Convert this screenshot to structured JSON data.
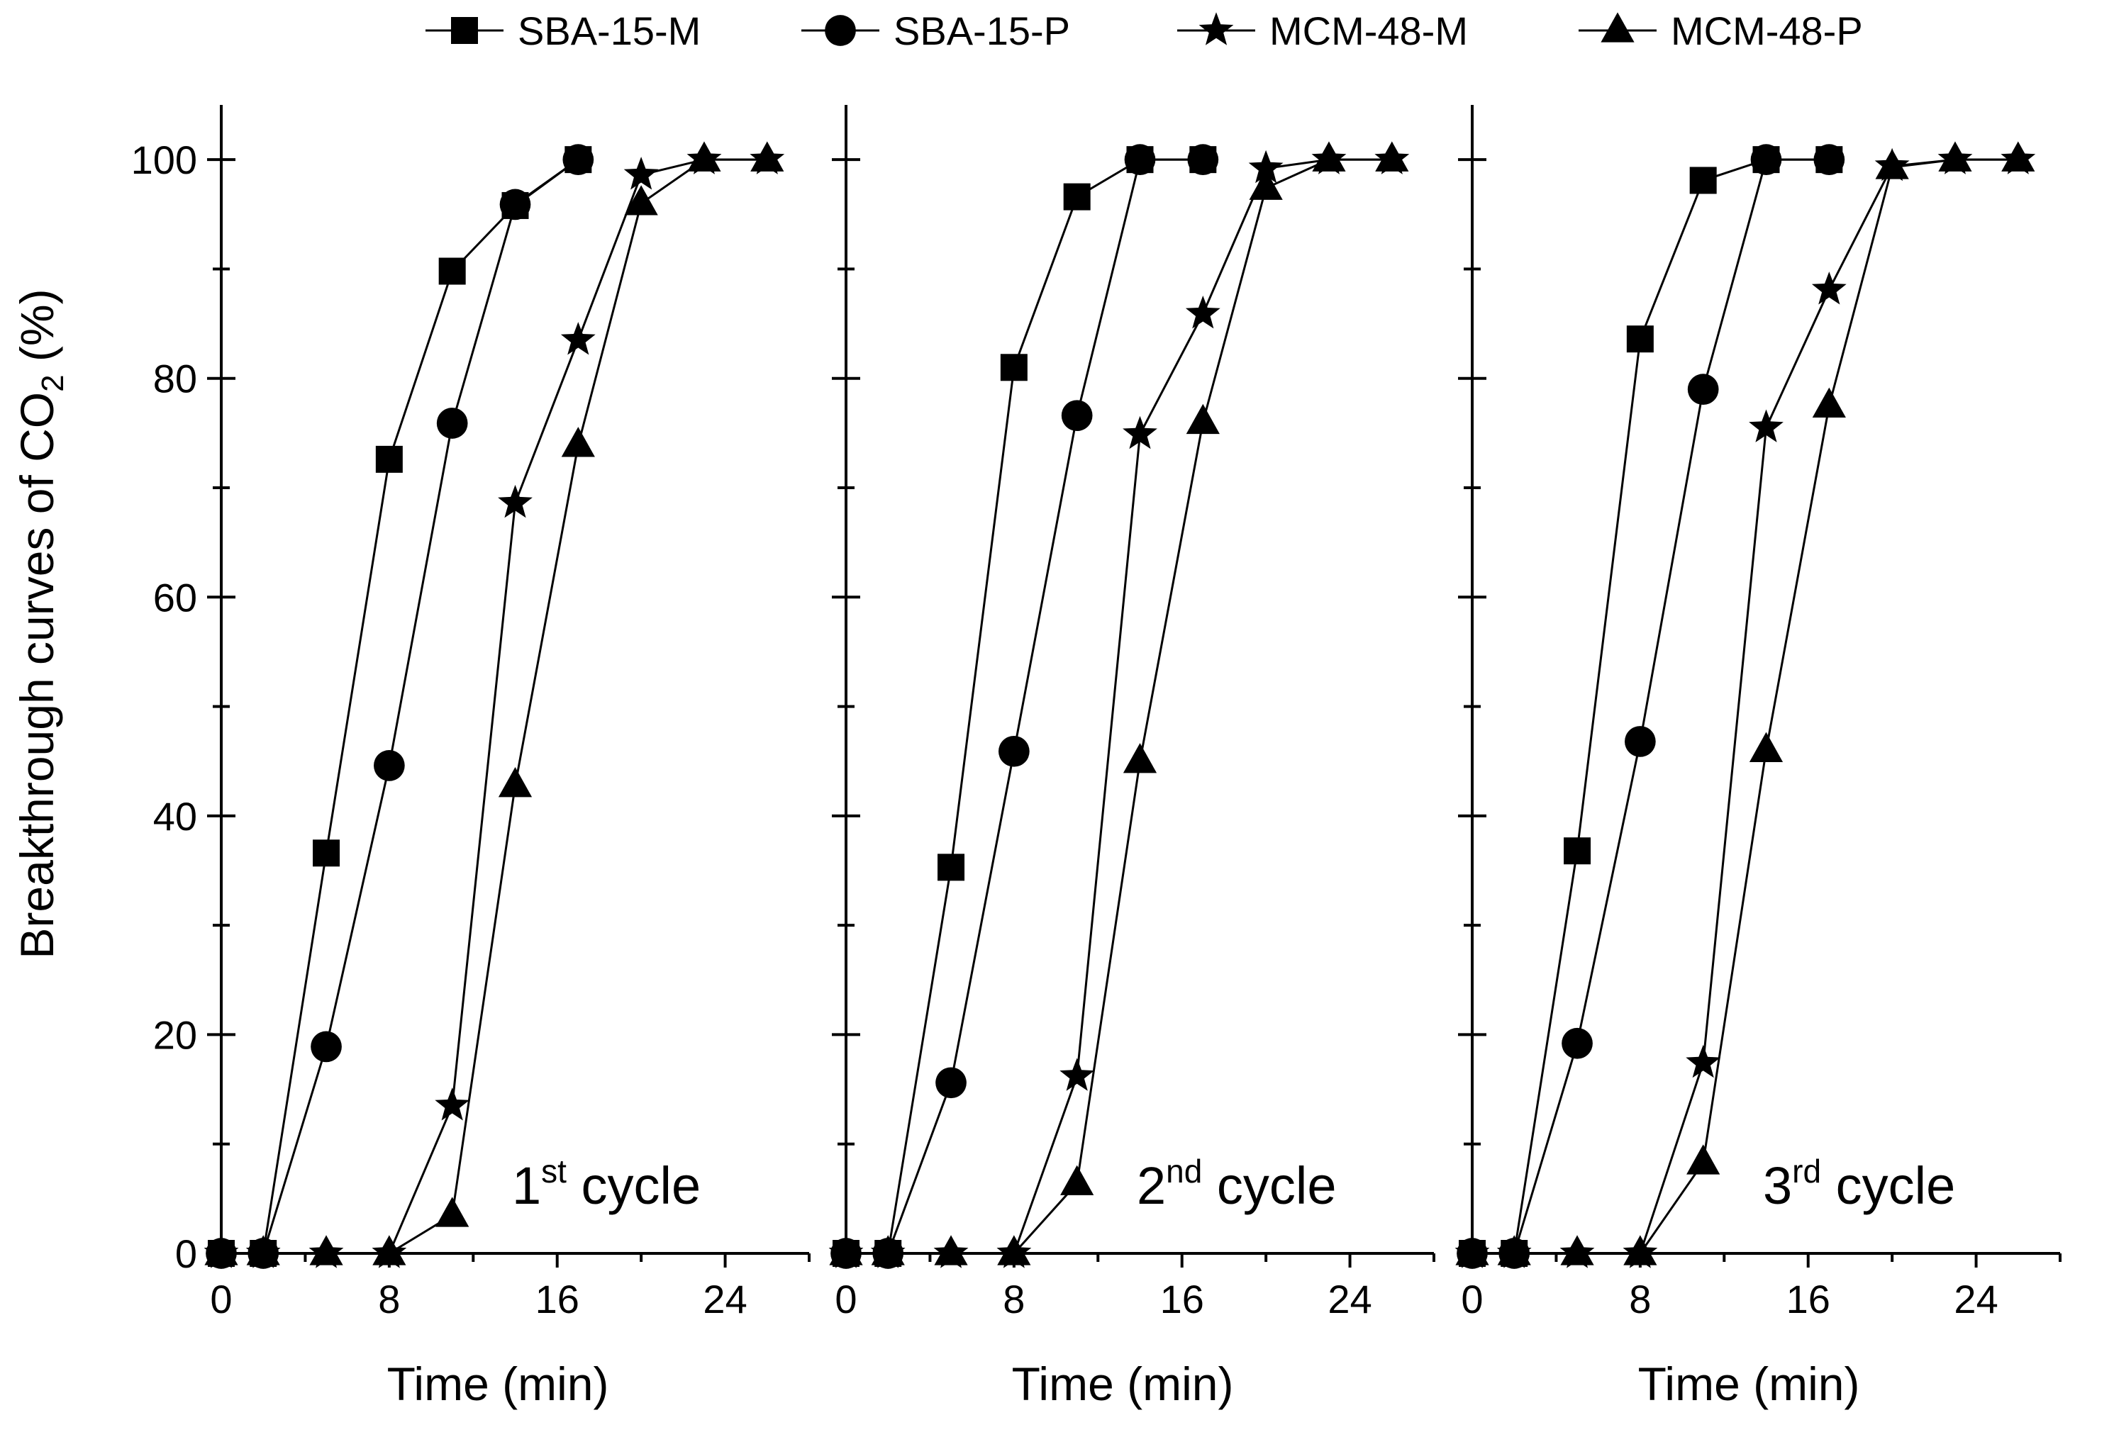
{
  "chart_data": {
    "type": "line",
    "ylabel": "Breakthrough curves of CO",
    "ylabel_sub": "2",
    "ylabel_suffix": " (%)",
    "xlabel": "Time (min)",
    "xlim": [
      0,
      28
    ],
    "ylim": [
      0,
      105
    ],
    "xticks": [
      "0",
      "8",
      "16",
      "24"
    ],
    "yticks": [
      "0",
      "20",
      "40",
      "60",
      "80",
      "100"
    ],
    "legend": {
      "position": "top",
      "entries": [
        {
          "name": "SBA-15-M",
          "marker": "square"
        },
        {
          "name": "SBA-15-P",
          "marker": "circle"
        },
        {
          "name": "MCM-48-M",
          "marker": "star"
        },
        {
          "name": "MCM-48-P",
          "marker": "triangle"
        }
      ]
    },
    "panels": [
      {
        "label_num": "1",
        "label_sup": "st",
        "label_rest": " cycle",
        "series": [
          {
            "name": "SBA-15-M",
            "marker": "square",
            "x": [
              0,
              2,
              5,
              8,
              11,
              14,
              17
            ],
            "y": [
              0,
              0,
              36.6,
              72.6,
              89.8,
              95.8,
              100
            ]
          },
          {
            "name": "SBA-15-P",
            "marker": "circle",
            "x": [
              0,
              2,
              5,
              8,
              11,
              14,
              17
            ],
            "y": [
              0,
              0,
              18.9,
              44.6,
              75.9,
              95.9,
              100
            ]
          },
          {
            "name": "MCM-48-M",
            "marker": "star",
            "x": [
              0,
              2,
              5,
              8,
              11,
              14,
              17,
              20,
              23,
              26
            ],
            "y": [
              0,
              0,
              0,
              0,
              13.5,
              68.6,
              83.5,
              98.6,
              100,
              100
            ]
          },
          {
            "name": "MCM-48-P",
            "marker": "triangle",
            "x": [
              0,
              2,
              5,
              8,
              11,
              14,
              17,
              20,
              23,
              26
            ],
            "y": [
              0,
              0,
              0,
              0,
              3.5,
              42.8,
              73.9,
              96.0,
              100,
              100
            ]
          }
        ]
      },
      {
        "label_num": "2",
        "label_sup": "nd",
        "label_rest": " cycle",
        "series": [
          {
            "name": "SBA-15-M",
            "marker": "square",
            "x": [
              0,
              2,
              5,
              8,
              11,
              14,
              17
            ],
            "y": [
              0,
              0,
              35.3,
              81.0,
              96.6,
              100,
              100
            ]
          },
          {
            "name": "SBA-15-P",
            "marker": "circle",
            "x": [
              0,
              2,
              5,
              8,
              11,
              14,
              17
            ],
            "y": [
              0,
              0,
              15.6,
              45.9,
              76.6,
              100,
              100
            ]
          },
          {
            "name": "MCM-48-M",
            "marker": "star",
            "x": [
              0,
              2,
              5,
              8,
              11,
              14,
              17,
              20,
              23,
              26
            ],
            "y": [
              0,
              0,
              0,
              0,
              16.2,
              74.9,
              85.9,
              99.2,
              100,
              100
            ]
          },
          {
            "name": "MCM-48-P",
            "marker": "triangle",
            "x": [
              0,
              2,
              5,
              8,
              11,
              14,
              17,
              20,
              23,
              26
            ],
            "y": [
              0,
              0,
              0,
              0,
              6.4,
              45.0,
              76.0,
              97.4,
              100,
              100
            ]
          }
        ]
      },
      {
        "label_num": "3",
        "label_sup": "rd",
        "label_rest": " cycle",
        "series": [
          {
            "name": "SBA-15-M",
            "marker": "square",
            "x": [
              0,
              2,
              5,
              8,
              11,
              14,
              17
            ],
            "y": [
              0,
              0,
              36.8,
              83.6,
              98.1,
              100,
              100
            ]
          },
          {
            "name": "SBA-15-P",
            "marker": "circle",
            "x": [
              0,
              2,
              5,
              8,
              11,
              14,
              17
            ],
            "y": [
              0,
              0,
              19.2,
              46.8,
              79.0,
              100,
              100
            ]
          },
          {
            "name": "MCM-48-M",
            "marker": "star",
            "x": [
              0,
              2,
              5,
              8,
              11,
              14,
              17,
              20,
              23,
              26
            ],
            "y": [
              0,
              0,
              0,
              0,
              17.4,
              75.5,
              88.1,
              99.4,
              100,
              100
            ]
          },
          {
            "name": "MCM-48-P",
            "marker": "triangle",
            "x": [
              0,
              2,
              5,
              8,
              11,
              14,
              17,
              20,
              23,
              26
            ],
            "y": [
              0,
              0,
              0,
              0,
              8.3,
              46.0,
              77.5,
              99.3,
              100,
              100
            ]
          }
        ]
      }
    ]
  }
}
